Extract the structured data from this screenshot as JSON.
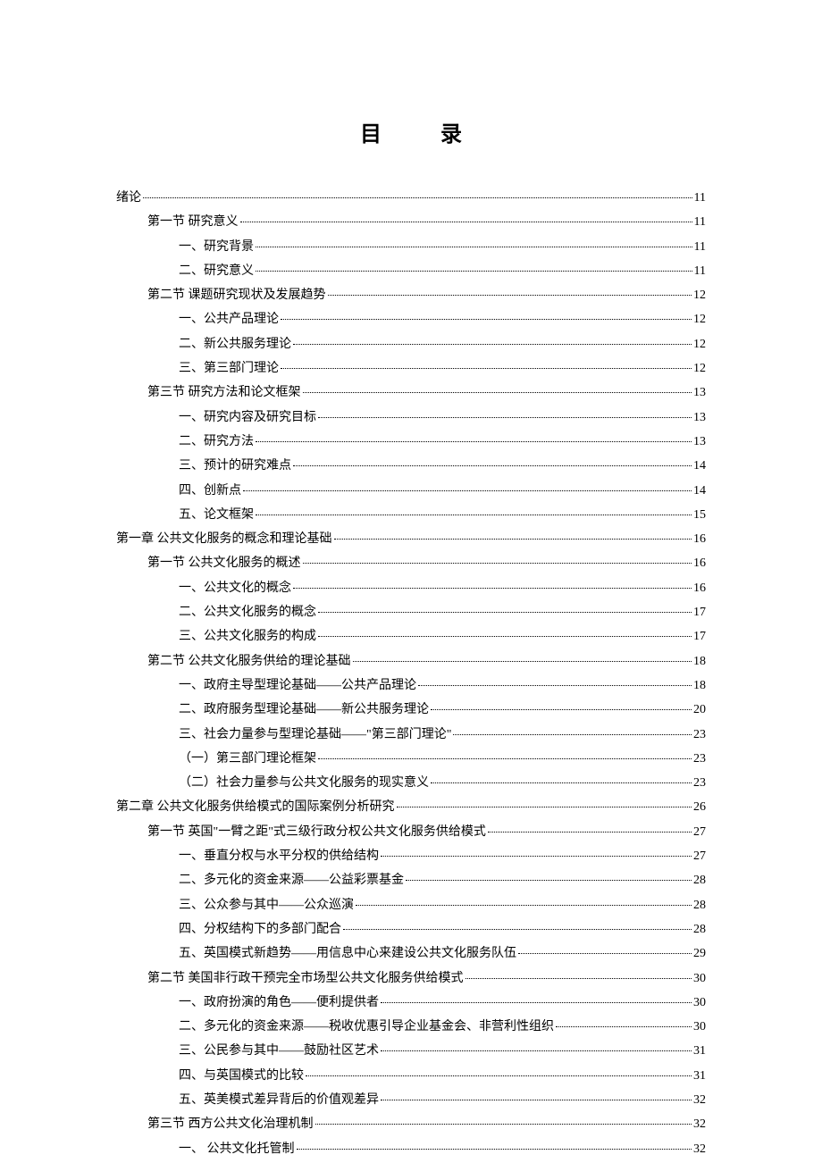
{
  "title": "目 录",
  "entries": [
    {
      "level": 0,
      "label": "绪论",
      "page": "11"
    },
    {
      "level": 1,
      "label": "第一节  研究意义",
      "page": "11"
    },
    {
      "level": 2,
      "label": "一、研究背景",
      "page": "11"
    },
    {
      "level": 2,
      "label": "二、研究意义",
      "page": "11"
    },
    {
      "level": 1,
      "label": "第二节  课题研究现状及发展趋势 ",
      "page": "12"
    },
    {
      "level": 2,
      "label": "一、公共产品理论",
      "page": "12"
    },
    {
      "level": 2,
      "label": "二、新公共服务理论 ",
      "page": "12"
    },
    {
      "level": 2,
      "label": "三、第三部门理论",
      "page": "12"
    },
    {
      "level": 1,
      "label": "第三节  研究方法和论文框架 ",
      "page": "13"
    },
    {
      "level": 2,
      "label": "一、研究内容及研究目标 ",
      "page": "13"
    },
    {
      "level": 2,
      "label": "二、研究方法",
      "page": "13"
    },
    {
      "level": 2,
      "label": "三、预计的研究难点 ",
      "page": "14"
    },
    {
      "level": 2,
      "label": "四、创新点",
      "page": "14"
    },
    {
      "level": 2,
      "label": "五、论文框架",
      "page": "15"
    },
    {
      "level": 0,
      "label": "第一章  公共文化服务的概念和理论基础 ",
      "page": "16"
    },
    {
      "level": 1,
      "label": "第一节  公共文化服务的概述 ",
      "page": "16"
    },
    {
      "level": 2,
      "label": "一、公共文化的概念",
      "page": "16"
    },
    {
      "level": 2,
      "label": "二、公共文化服务的概念 ",
      "page": "17"
    },
    {
      "level": 2,
      "label": "三、公共文化服务的构成 ",
      "page": "17"
    },
    {
      "level": 1,
      "label": "第二节  公共文化服务供给的理论基础 ",
      "page": "18"
    },
    {
      "level": 2,
      "label": "一、政府主导型理论基础——公共产品理论 ",
      "page": "18"
    },
    {
      "level": 2,
      "label": "二、政府服务型理论基础——新公共服务理论 ",
      "page": "20"
    },
    {
      "level": 2,
      "label": "三、社会力量参与型理论基础——\"第三部门理论\" ",
      "page": "23"
    },
    {
      "level": 3,
      "label": "（一）第三部门理论框架 ",
      "page": "23"
    },
    {
      "level": 3,
      "label": "（二）社会力量参与公共文化服务的现实意义 ",
      "page": "23"
    },
    {
      "level": 0,
      "label": "第二章  公共文化服务供给模式的国际案例分析研究 ",
      "page": "26"
    },
    {
      "level": 1,
      "label": "第一节  英国\"一臂之距\"式三级行政分权公共文化服务供给模式 ",
      "page": "27"
    },
    {
      "level": 2,
      "label": "一、垂直分权与水平分权的供给结构 ",
      "page": "27"
    },
    {
      "level": 2,
      "label": "二、多元化的资金来源——公益彩票基金 ",
      "page": "28"
    },
    {
      "level": 2,
      "label": "三、公众参与其中——公众巡演 ",
      "page": "28"
    },
    {
      "level": 2,
      "label": "四、分权结构下的多部门配合 ",
      "page": "28"
    },
    {
      "level": 2,
      "label": "五、英国模式新趋势——用信息中心来建设公共文化服务队伍 ",
      "page": "29"
    },
    {
      "level": 1,
      "label": "第二节  美国非行政干预完全市场型公共文化服务供给模式 ",
      "page": "30"
    },
    {
      "level": 2,
      "label": "一、政府扮演的角色——便利提供者 ",
      "page": "30"
    },
    {
      "level": 2,
      "label": "二、多元化的资金来源——税收优惠引导企业基金会、非营利性组织 ",
      "page": "30"
    },
    {
      "level": 2,
      "label": "三、公民参与其中——鼓励社区艺术 ",
      "page": "31"
    },
    {
      "level": 2,
      "label": "四、与英国模式的比较 ",
      "page": "31"
    },
    {
      "level": 2,
      "label": "五、英美模式差异背后的价值观差异 ",
      "page": "32"
    },
    {
      "level": 1,
      "label": "第三节  西方公共文化治理机制 ",
      "page": "32"
    },
    {
      "level": 2,
      "label": "一、      公共文化托管制",
      "page": "32"
    }
  ]
}
